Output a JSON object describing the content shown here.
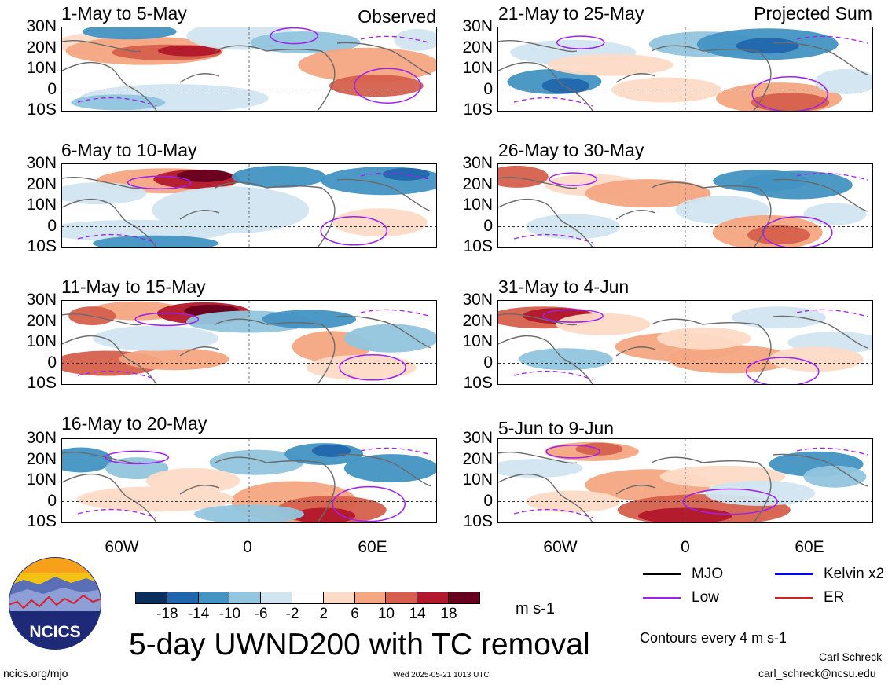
{
  "header": {
    "left_label": "Observed",
    "right_label": "Projected Sum"
  },
  "panels_left": [
    {
      "title": "1-May to 5-May"
    },
    {
      "title": "6-May to 10-May"
    },
    {
      "title": "11-May to 15-May"
    },
    {
      "title": "16-May to 20-May"
    }
  ],
  "panels_right": [
    {
      "title": "21-May to 25-May"
    },
    {
      "title": "26-May to 30-May"
    },
    {
      "title": "31-May to 4-Jun"
    },
    {
      "title": "5-Jun to 9-Jun"
    }
  ],
  "lat_labels": [
    "30N",
    "20N",
    "10N",
    "0",
    "10S"
  ],
  "lon_labels": [
    "60W",
    "0",
    "60E"
  ],
  "colorbar": {
    "ticks": [
      "-18",
      "-14",
      "-10",
      "-6",
      "-2",
      "2",
      "6",
      "10",
      "14",
      "18"
    ],
    "colors": [
      "#0a2f5e",
      "#2166ac",
      "#4393c3",
      "#92c5de",
      "#d1e5f0",
      "#ffffff",
      "#fddbc7",
      "#f4a582",
      "#d6604d",
      "#b2182b",
      "#67001f"
    ],
    "units": "m s-1"
  },
  "legend": {
    "items": [
      {
        "label": "MJO",
        "color": "#000000"
      },
      {
        "label": "Kelvin x2",
        "color": "#0000ff"
      },
      {
        "label": "Low",
        "color": "#a020f0"
      },
      {
        "label": "ER",
        "color": "#d62020"
      }
    ],
    "contour_note": "Contours every 4 m s-1"
  },
  "main_title": "5-day UWND200 with TC removal",
  "logo": {
    "text": "NCICS"
  },
  "footer": {
    "url": "ncics.org/mjo",
    "timestamp": "Wed 2025-05-21 1013 UTC",
    "author": "Carl Schreck",
    "email": "carl_schreck@ncsu.edu"
  },
  "chart_data": {
    "type": "heatmap",
    "variable": "UWND200 anomaly",
    "units": "m s-1",
    "levels": [
      -18,
      -14,
      -10,
      -6,
      -2,
      2,
      6,
      10,
      14,
      18
    ],
    "lat_range": [
      "10S",
      "30N"
    ],
    "lon_range": [
      "100W",
      "100E"
    ],
    "panels": [
      {
        "period": "1-May to 5-May",
        "type": "observed"
      },
      {
        "period": "6-May to 10-May",
        "type": "observed"
      },
      {
        "period": "11-May to 15-May",
        "type": "observed"
      },
      {
        "period": "16-May to 20-May",
        "type": "observed"
      },
      {
        "period": "21-May to 25-May",
        "type": "projected"
      },
      {
        "period": "26-May to 30-May",
        "type": "projected"
      },
      {
        "period": "31-May to 4-Jun",
        "type": "projected"
      },
      {
        "period": "5-Jun to 9-Jun",
        "type": "projected"
      }
    ]
  }
}
